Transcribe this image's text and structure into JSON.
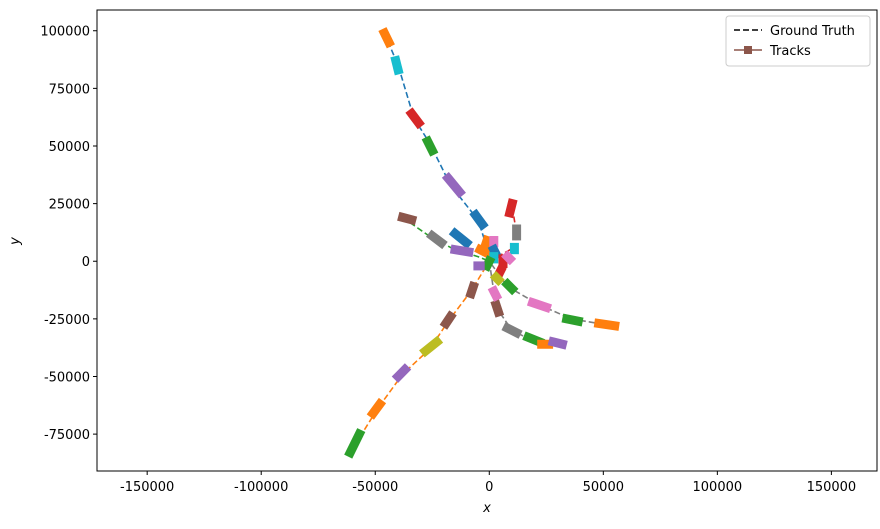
{
  "chart_data": {
    "type": "tracks",
    "xlabel": "x",
    "ylabel": "y",
    "xlim": [
      -172000,
      170000
    ],
    "ylim": [
      -91000,
      109000
    ],
    "xticks": [
      -150000,
      -100000,
      -50000,
      0,
      50000,
      100000,
      150000
    ],
    "yticks": [
      -75000,
      -50000,
      -25000,
      0,
      25000,
      50000,
      75000,
      100000
    ],
    "legend": {
      "position": "upper right",
      "entries": [
        {
          "name": "Ground Truth",
          "color": "#000000",
          "style": "dashed"
        },
        {
          "name": "Tracks",
          "color": "#8c564b",
          "style": "square"
        }
      ]
    },
    "ground_truth": [
      {
        "color": "#1f77b4",
        "x": [
          -46000,
          -40000,
          -33000,
          -26000,
          -17000,
          -5000,
          0
        ],
        "y": [
          99000,
          85000,
          62000,
          51000,
          33000,
          18000,
          3000
        ]
      },
      {
        "color": "#ff7f0e",
        "x": [
          -61000,
          -49000,
          -38000,
          -26000,
          -18000,
          -8000,
          0
        ],
        "y": [
          -83000,
          -64000,
          -49000,
          -38000,
          -26000,
          -13000,
          0
        ]
      },
      {
        "color": "#2ca02c",
        "x": [
          -38000,
          -25000,
          -15000,
          -5000,
          0
        ],
        "y": [
          19000,
          10000,
          5000,
          2000,
          0
        ]
      },
      {
        "color": "#7f7f7f",
        "x": [
          54000,
          36000,
          22000,
          8000,
          0
        ],
        "y": [
          -28000,
          -25000,
          -19000,
          -11000,
          0
        ]
      },
      {
        "color": "#7f7f7f",
        "x": [
          0,
          3000,
          10000,
          18000,
          30000
        ],
        "y": [
          0,
          -20000,
          -30000,
          -34000,
          -36000
        ]
      },
      {
        "color": "#d62728",
        "x": [
          0,
          11000,
          12000,
          10000
        ],
        "y": [
          0,
          6000,
          12000,
          24000
        ]
      }
    ],
    "tracks": [
      {
        "color": "#ff7f0e",
        "x": [
          -46000,
          -44000
        ],
        "y": [
          99000,
          95000
        ]
      },
      {
        "color": "#17becf",
        "x": [
          -41000,
          -40000
        ],
        "y": [
          87000,
          83000
        ]
      },
      {
        "color": "#d62728",
        "x": [
          -34000,
          -31000
        ],
        "y": [
          64000,
          60000
        ]
      },
      {
        "color": "#2ca02c",
        "x": [
          -27000,
          -25000
        ],
        "y": [
          52000,
          48000
        ]
      },
      {
        "color": "#9467bd",
        "x": [
          -18000,
          -13000
        ],
        "y": [
          36000,
          30000
        ]
      },
      {
        "color": "#1f77b4",
        "x": [
          -6000,
          -3000
        ],
        "y": [
          20000,
          16000
        ]
      },
      {
        "color": "#2ca02c",
        "x": [
          -61000,
          -57000
        ],
        "y": [
          -83000,
          -75000
        ]
      },
      {
        "color": "#ff7f0e",
        "x": [
          -51000,
          -48000
        ],
        "y": [
          -66000,
          -62000
        ]
      },
      {
        "color": "#9467bd",
        "x": [
          -40000,
          -37000
        ],
        "y": [
          -50000,
          -47000
        ]
      },
      {
        "color": "#bcbd22",
        "x": [
          -28000,
          -23000
        ],
        "y": [
          -39000,
          -35000
        ]
      },
      {
        "color": "#8c564b",
        "x": [
          -19000,
          -17000
        ],
        "y": [
          -27000,
          -24000
        ]
      },
      {
        "color": "#8c564b",
        "x": [
          -8000,
          -7000
        ],
        "y": [
          -14000,
          -11000
        ]
      },
      {
        "color": "#8c564b",
        "x": [
          -38000,
          -34000
        ],
        "y": [
          19000,
          18000
        ]
      },
      {
        "color": "#7f7f7f",
        "x": [
          -25000,
          -21000
        ],
        "y": [
          11000,
          8000
        ]
      },
      {
        "color": "#1f77b4",
        "x": [
          -15000,
          -10000
        ],
        "y": [
          12000,
          8000
        ]
      },
      {
        "color": "#9467bd",
        "x": [
          -15000,
          -9000
        ],
        "y": [
          5000,
          4000
        ]
      },
      {
        "color": "#ff7f0e",
        "x": [
          48000,
          55000
        ],
        "y": [
          -27000,
          -28000
        ]
      },
      {
        "color": "#2ca02c",
        "x": [
          34000,
          39000
        ],
        "y": [
          -25000,
          -26000
        ]
      },
      {
        "color": "#e377c2",
        "x": [
          19000,
          25000
        ],
        "y": [
          -18000,
          -20000
        ]
      },
      {
        "color": "#2ca02c",
        "x": [
          8000,
          10000
        ],
        "y": [
          -10000,
          -12000
        ]
      },
      {
        "color": "#8c564b",
        "x": [
          3000,
          4000
        ],
        "y": [
          -19000,
          -22000
        ]
      },
      {
        "color": "#7f7f7f",
        "x": [
          8000,
          12000
        ],
        "y": [
          -29000,
          -31000
        ]
      },
      {
        "color": "#2ca02c",
        "x": [
          17000,
          22000
        ],
        "y": [
          -33000,
          -35000
        ]
      },
      {
        "color": "#ff7f0e",
        "x": [
          23000,
          26000
        ],
        "y": [
          -36000,
          -36000
        ]
      },
      {
        "color": "#9467bd",
        "x": [
          28000,
          32000
        ],
        "y": [
          -35000,
          -36000
        ]
      },
      {
        "color": "#e377c2",
        "x": [
          2000,
          3000
        ],
        "y": [
          -13000,
          -15000
        ]
      },
      {
        "color": "#d62728",
        "x": [
          10000,
          9000
        ],
        "y": [
          25000,
          21000
        ]
      },
      {
        "color": "#7f7f7f",
        "x": [
          12000,
          12000
        ],
        "y": [
          14000,
          11000
        ]
      },
      {
        "color": "#17becf",
        "x": [
          11000,
          11000
        ],
        "y": [
          6000,
          5000
        ]
      },
      {
        "color": "#ff7f0e",
        "x": [
          -4000,
          0
        ],
        "y": [
          5000,
          3000
        ]
      },
      {
        "color": "#ff7f0e",
        "x": [
          -1000,
          -2000
        ],
        "y": [
          9000,
          6000
        ]
      },
      {
        "color": "#e377c2",
        "x": [
          2000,
          2000
        ],
        "y": [
          9000,
          8000
        ]
      },
      {
        "color": "#1f77b4",
        "x": [
          2000,
          3000
        ],
        "y": [
          5000,
          3000
        ]
      },
      {
        "color": "#17becf",
        "x": [
          2000,
          2000
        ],
        "y": [
          2000,
          1000
        ]
      },
      {
        "color": "#2ca02c",
        "x": [
          0,
          -1000
        ],
        "y": [
          0,
          -2000
        ]
      },
      {
        "color": "#9467bd",
        "x": [
          -5000,
          -4000
        ],
        "y": [
          -2000,
          -2000
        ]
      },
      {
        "color": "#d62728",
        "x": [
          5000,
          4000
        ],
        "y": [
          -4000,
          -6000
        ]
      },
      {
        "color": "#d62728",
        "x": [
          6000,
          6000
        ],
        "y": [
          1000,
          -1000
        ]
      },
      {
        "color": "#e377c2",
        "x": [
          8000,
          9000
        ],
        "y": [
          2000,
          1000
        ]
      },
      {
        "color": "#bcbd22",
        "x": [
          3000,
          4000
        ],
        "y": [
          -7000,
          -8000
        ]
      }
    ]
  }
}
